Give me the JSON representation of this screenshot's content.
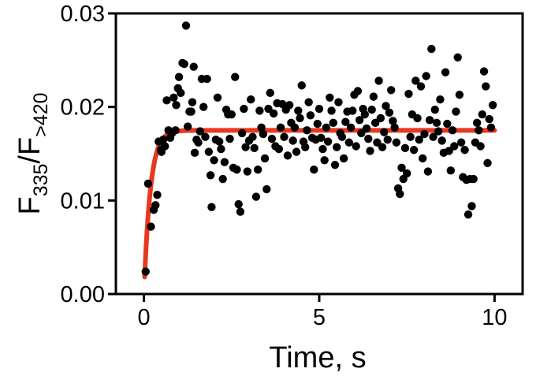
{
  "chart_data": {
    "type": "scatter",
    "xlabel": "Time, s",
    "ylabel": {
      "main": "F",
      "sub1": "335",
      "sep": "/F",
      "sub2": ">420"
    },
    "xlim": [
      -0.8,
      10.8
    ],
    "ylim": [
      0,
      0.03
    ],
    "x_ticks": [
      0,
      5,
      10
    ],
    "x_tick_labels": [
      "0",
      "5",
      "10"
    ],
    "y_ticks": [
      0,
      0.01,
      0.02,
      0.03
    ],
    "y_tick_labels": [
      "0.00",
      "0.01",
      "0.02",
      "0.03"
    ],
    "grid": false,
    "colors": {
      "points": "#000000",
      "fit": "#e8381f",
      "axes": "#000000"
    },
    "series": [
      {
        "kind": "points",
        "points": [
          [
            0.05,
            0.0024
          ],
          [
            0.12,
            0.0118
          ],
          [
            0.2,
            0.0072
          ],
          [
            0.28,
            0.009
          ],
          [
            0.33,
            0.0095
          ],
          [
            0.38,
            0.0106
          ],
          [
            0.42,
            0.0163
          ],
          [
            0.48,
            0.0154
          ],
          [
            0.5,
            0.0152
          ],
          [
            0.55,
            0.0165
          ],
          [
            0.6,
            0.0158
          ],
          [
            0.65,
            0.0207
          ],
          [
            0.7,
            0.0175
          ],
          [
            0.75,
            0.0167
          ],
          [
            0.8,
            0.0172
          ],
          [
            0.85,
            0.021
          ],
          [
            0.9,
            0.0175
          ],
          [
            0.92,
            0.0202
          ],
          [
            0.97,
            0.022
          ],
          [
            1.0,
            0.0232
          ],
          [
            1.05,
            0.0215
          ],
          [
            1.1,
            0.0247
          ],
          [
            1.15,
            0.0246
          ],
          [
            1.2,
            0.0287
          ],
          [
            1.25,
            0.0179
          ],
          [
            1.3,
            0.0195
          ],
          [
            1.35,
            0.0195
          ],
          [
            1.38,
            0.0205
          ],
          [
            1.42,
            0.0243
          ],
          [
            1.45,
            0.0151
          ],
          [
            1.5,
            0.0165
          ],
          [
            1.55,
            0.0162
          ],
          [
            1.6,
            0.0174
          ],
          [
            1.65,
            0.023
          ],
          [
            1.7,
            0.02
          ],
          [
            1.75,
            0.0168
          ],
          [
            1.8,
            0.023
          ],
          [
            1.85,
            0.0152
          ],
          [
            1.9,
            0.0127
          ],
          [
            1.93,
            0.0093
          ],
          [
            2.0,
            0.0143
          ],
          [
            2.05,
            0.0165
          ],
          [
            2.1,
            0.021
          ],
          [
            2.15,
            0.0163
          ],
          [
            2.2,
            0.0155
          ],
          [
            2.25,
            0.0123
          ],
          [
            2.3,
            0.0141
          ],
          [
            2.35,
            0.0197
          ],
          [
            2.4,
            0.0192
          ],
          [
            2.45,
            0.0166
          ],
          [
            2.5,
            0.0192
          ],
          [
            2.55,
            0.0135
          ],
          [
            2.6,
            0.0232
          ],
          [
            2.65,
            0.0133
          ],
          [
            2.7,
            0.0096
          ],
          [
            2.75,
            0.0088
          ],
          [
            2.8,
            0.0172
          ],
          [
            2.85,
            0.0198
          ],
          [
            2.9,
            0.0157
          ],
          [
            2.95,
            0.0131
          ],
          [
            3.0,
            0.0164
          ],
          [
            3.05,
            0.0208
          ],
          [
            3.1,
            0.0168
          ],
          [
            3.15,
            0.0156
          ],
          [
            3.2,
            0.0104
          ],
          [
            3.25,
            0.0133
          ],
          [
            3.3,
            0.0196
          ],
          [
            3.35,
            0.0178
          ],
          [
            3.4,
            0.0171
          ],
          [
            3.45,
            0.0145
          ],
          [
            3.5,
            0.0112
          ],
          [
            3.55,
            0.0198
          ],
          [
            3.6,
            0.0215
          ],
          [
            3.65,
            0.0166
          ],
          [
            3.7,
            0.0193
          ],
          [
            3.75,
            0.0158
          ],
          [
            3.8,
            0.0204
          ],
          [
            3.85,
            0.0155
          ],
          [
            3.9,
            0.0178
          ],
          [
            3.95,
            0.0203
          ],
          [
            4.0,
            0.0168
          ],
          [
            4.05,
            0.0197
          ],
          [
            4.1,
            0.0148
          ],
          [
            4.15,
            0.0202
          ],
          [
            4.2,
            0.0183
          ],
          [
            4.25,
            0.0164
          ],
          [
            4.3,
            0.0178
          ],
          [
            4.35,
            0.0152
          ],
          [
            4.4,
            0.0196
          ],
          [
            4.45,
            0.0188
          ],
          [
            4.5,
            0.0223
          ],
          [
            4.55,
            0.0163
          ],
          [
            4.6,
            0.0157
          ],
          [
            4.65,
            0.0175
          ],
          [
            4.7,
            0.0205
          ],
          [
            4.75,
            0.0191
          ],
          [
            4.8,
            0.0167
          ],
          [
            4.85,
            0.0133
          ],
          [
            4.9,
            0.0165
          ],
          [
            4.95,
            0.0182
          ],
          [
            5.0,
            0.0198
          ],
          [
            5.05,
            0.0167
          ],
          [
            5.1,
            0.0155
          ],
          [
            5.15,
            0.0143
          ],
          [
            5.2,
            0.0178
          ],
          [
            5.25,
            0.0163
          ],
          [
            5.3,
            0.021
          ],
          [
            5.35,
            0.0196
          ],
          [
            5.4,
            0.0183
          ],
          [
            5.45,
            0.0138
          ],
          [
            5.5,
            0.0157
          ],
          [
            5.55,
            0.0205
          ],
          [
            5.6,
            0.0172
          ],
          [
            5.65,
            0.0168
          ],
          [
            5.7,
            0.0145
          ],
          [
            5.75,
            0.0184
          ],
          [
            5.8,
            0.0195
          ],
          [
            5.85,
            0.0162
          ],
          [
            5.9,
            0.0178
          ],
          [
            5.95,
            0.0196
          ],
          [
            6.0,
            0.0213
          ],
          [
            6.05,
            0.0158
          ],
          [
            6.1,
            0.0217
          ],
          [
            6.15,
            0.0186
          ],
          [
            6.2,
            0.0172
          ],
          [
            6.25,
            0.0198
          ],
          [
            6.3,
            0.0192
          ],
          [
            6.35,
            0.0177
          ],
          [
            6.4,
            0.0166
          ],
          [
            6.45,
            0.0153
          ],
          [
            6.5,
            0.0197
          ],
          [
            6.55,
            0.0211
          ],
          [
            6.6,
            0.0183
          ],
          [
            6.65,
            0.0162
          ],
          [
            6.7,
            0.0228
          ],
          [
            6.75,
            0.0188
          ],
          [
            6.8,
            0.0157
          ],
          [
            6.85,
            0.0173
          ],
          [
            6.9,
            0.0201
          ],
          [
            6.95,
            0.0165
          ],
          [
            7.0,
            0.0194
          ],
          [
            7.05,
            0.0218
          ],
          [
            7.1,
            0.0185
          ],
          [
            7.15,
            0.0178
          ],
          [
            7.2,
            0.0162
          ],
          [
            7.25,
            0.0113
          ],
          [
            7.3,
            0.0107
          ],
          [
            7.35,
            0.0135
          ],
          [
            7.4,
            0.0123
          ],
          [
            7.45,
            0.0156
          ],
          [
            7.5,
            0.0129
          ],
          [
            7.55,
            0.0214
          ],
          [
            7.6,
            0.0168
          ],
          [
            7.65,
            0.0192
          ],
          [
            7.7,
            0.0154
          ],
          [
            7.75,
            0.0228
          ],
          [
            7.8,
            0.0188
          ],
          [
            7.85,
            0.0165
          ],
          [
            7.9,
            0.0222
          ],
          [
            7.95,
            0.0145
          ],
          [
            8.0,
            0.0171
          ],
          [
            8.05,
            0.0233
          ],
          [
            8.1,
            0.0131
          ],
          [
            8.15,
            0.0186
          ],
          [
            8.2,
            0.0262
          ],
          [
            8.25,
            0.0168
          ],
          [
            8.3,
            0.0197
          ],
          [
            8.35,
            0.0183
          ],
          [
            8.4,
            0.0174
          ],
          [
            8.45,
            0.0208
          ],
          [
            8.5,
            0.0164
          ],
          [
            8.55,
            0.0151
          ],
          [
            8.6,
            0.0237
          ],
          [
            8.65,
            0.0182
          ],
          [
            8.7,
            0.0153
          ],
          [
            8.75,
            0.0132
          ],
          [
            8.8,
            0.0175
          ],
          [
            8.85,
            0.0158
          ],
          [
            8.9,
            0.0195
          ],
          [
            8.95,
            0.0253
          ],
          [
            9.0,
            0.0213
          ],
          [
            9.05,
            0.0162
          ],
          [
            9.1,
            0.0125
          ],
          [
            9.15,
            0.0154
          ],
          [
            9.2,
            0.0122
          ],
          [
            9.25,
            0.0085
          ],
          [
            9.3,
            0.0123
          ],
          [
            9.35,
            0.0094
          ],
          [
            9.4,
            0.0123
          ],
          [
            9.45,
            0.0162
          ],
          [
            9.5,
            0.0183
          ],
          [
            9.55,
            0.0175
          ],
          [
            9.6,
            0.0158
          ],
          [
            9.65,
            0.0192
          ],
          [
            9.7,
            0.0238
          ],
          [
            9.75,
            0.0222
          ],
          [
            9.8,
            0.014
          ],
          [
            9.85,
            0.0187
          ],
          [
            9.9,
            0.0178
          ],
          [
            9.95,
            0.0202
          ]
        ]
      },
      {
        "kind": "fit",
        "equation": "y = A*(1 - exp(-k*t))",
        "A": 0.0175,
        "k": 5.5,
        "x_range": [
          0.02,
          10
        ]
      }
    ]
  }
}
